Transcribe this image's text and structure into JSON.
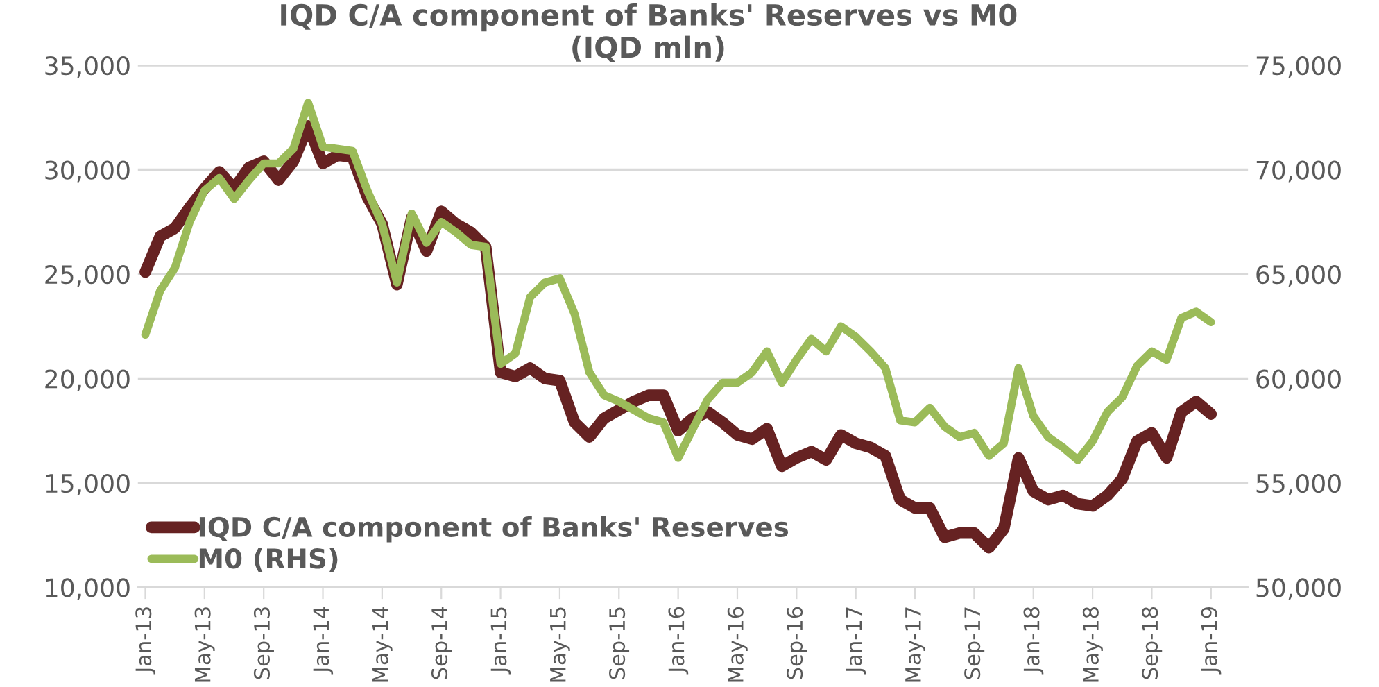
{
  "chart_data": {
    "type": "line",
    "title": "IQD C/A component of Banks' Reserves vs M0\n(IQD mln)",
    "categories": [
      "Jan-13",
      null,
      null,
      null,
      "May-13",
      null,
      null,
      null,
      "Sep-13",
      null,
      null,
      null,
      "Jan-14",
      null,
      null,
      null,
      "May-14",
      null,
      null,
      null,
      "Sep-14",
      null,
      null,
      null,
      "Jan-15",
      null,
      null,
      null,
      "May-15",
      null,
      null,
      null,
      "Sep-15",
      null,
      null,
      null,
      "Jan-16",
      null,
      null,
      null,
      "May-16",
      null,
      null,
      null,
      "Sep-16",
      null,
      null,
      null,
      "Jan-17",
      null,
      null,
      null,
      "May-17",
      null,
      null,
      null,
      "Sep-17",
      null,
      null,
      null,
      "Jan-18",
      null,
      null,
      null,
      "May-18",
      null,
      null,
      null,
      "Sep-18",
      null,
      null,
      null,
      "Jan-19"
    ],
    "series": [
      {
        "name": "IQD C/A component of Banks' Reserves",
        "color": "#662222",
        "axis": "y",
        "values": [
          25100,
          26800,
          27200,
          28200,
          29100,
          29900,
          29100,
          30100,
          30400,
          29500,
          30400,
          32100,
          30300,
          30700,
          30600,
          28700,
          27400,
          24500,
          27700,
          26100,
          28000,
          27400,
          27000,
          26300,
          20300,
          20100,
          20500,
          20000,
          19900,
          17900,
          17200,
          18100,
          18500,
          18900,
          19200,
          19200,
          17500,
          18100,
          18400,
          17900,
          17300,
          17100,
          17600,
          15800,
          16200,
          16500,
          16100,
          17300,
          16900,
          16700,
          16300,
          14200,
          13800,
          13800,
          12400,
          12600,
          12600,
          11900,
          12800,
          16200,
          14600,
          14200,
          14400,
          14000,
          13900,
          14400,
          15200,
          17000,
          17400,
          16200,
          18400,
          18900,
          18300
        ]
      },
      {
        "name": "M0 (RHS)",
        "color": "#9bbb59",
        "axis": "y2",
        "values": [
          62100,
          64200,
          65300,
          67500,
          69000,
          69600,
          68600,
          69500,
          70300,
          70300,
          71000,
          73200,
          71100,
          71000,
          70900,
          69000,
          67400,
          64600,
          67900,
          66500,
          67500,
          67000,
          66400,
          66300,
          60700,
          61200,
          63900,
          64600,
          64800,
          63100,
          60300,
          59200,
          58900,
          58500,
          58100,
          57900,
          56200,
          57600,
          59000,
          59800,
          59800,
          60300,
          61300,
          59800,
          60900,
          61900,
          61300,
          62500,
          62000,
          61300,
          60500,
          58000,
          57900,
          58600,
          57700,
          57200,
          57400,
          56300,
          56900,
          60500,
          58200,
          57200,
          56700,
          56100,
          57000,
          58400,
          59100,
          60600,
          61300,
          60900,
          62900,
          63200,
          62700
        ]
      }
    ],
    "ylim": [
      10000,
      35000
    ],
    "yticks": [
      {
        "value": 10000,
        "label": "10,000"
      },
      {
        "value": 15000,
        "label": "15,000"
      },
      {
        "value": 20000,
        "label": "20,000"
      },
      {
        "value": 25000,
        "label": "25,000"
      },
      {
        "value": 30000,
        "label": "30,000"
      },
      {
        "value": 35000,
        "label": "35,000"
      }
    ],
    "y2lim": [
      50000,
      75000
    ],
    "y2ticks": [
      {
        "value": 50000,
        "label": "50,000"
      },
      {
        "value": 55000,
        "label": "55,000"
      },
      {
        "value": 60000,
        "label": "60,000"
      },
      {
        "value": 65000,
        "label": "65,000"
      },
      {
        "value": 70000,
        "label": "70,000"
      },
      {
        "value": 75000,
        "label": "75,000"
      }
    ],
    "grid": "y",
    "legend": "bottom left",
    "marker": "none",
    "line_style": "solid"
  }
}
